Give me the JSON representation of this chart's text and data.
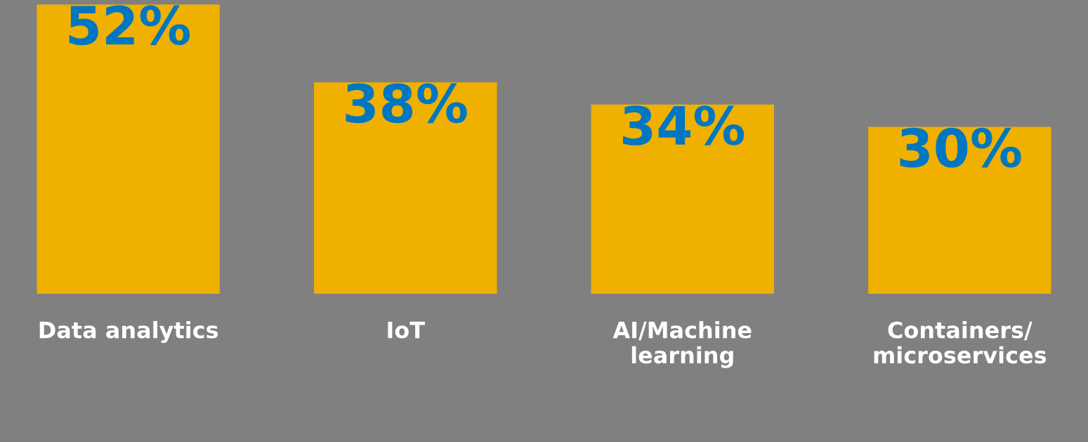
{
  "chart_data": {
    "type": "bar",
    "categories": [
      "Data analytics",
      "IoT",
      "AI/Machine\nlearning",
      "Containers/\nmicroservices"
    ],
    "values": [
      52,
      38,
      34,
      30
    ],
    "value_labels": [
      "52%",
      "38%",
      "34%",
      "30%"
    ],
    "color": "#f0b000",
    "grid": false,
    "legend": false
  }
}
